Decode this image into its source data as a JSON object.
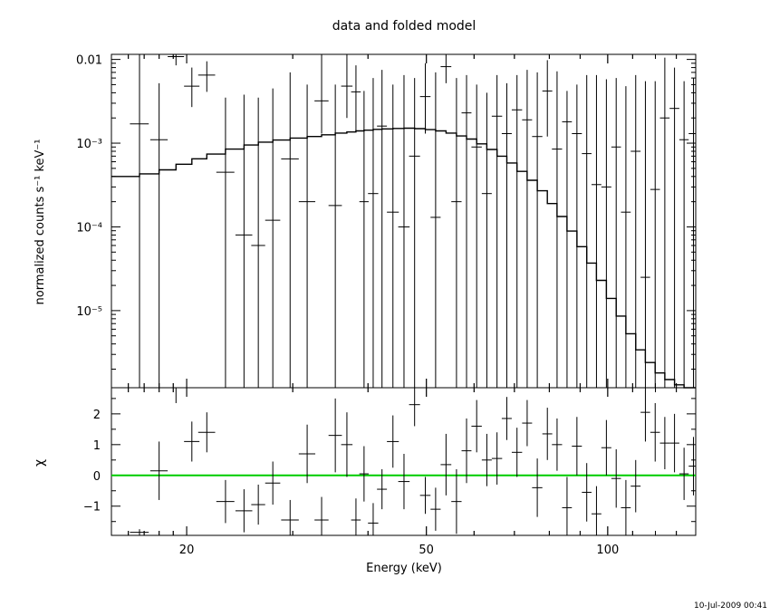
{
  "chart_data": [
    {
      "type": "scatter",
      "panel": "top",
      "title": "data and folded model",
      "xlabel": "",
      "ylabel": "normalized counts s⁻¹ keV⁻¹",
      "xscale": "log",
      "yscale": "log",
      "xlim": [
        15,
        140
      ],
      "ylim": [
        1.2e-06,
        0.0115
      ],
      "grid": false,
      "ytick_labels": [
        {
          "value": 0.01,
          "label": "0.01"
        },
        {
          "value": 0.001,
          "label": "10⁻³"
        },
        {
          "value": 0.0001,
          "label": "10⁻⁴"
        },
        {
          "value": 1e-05,
          "label": "10⁻⁵"
        }
      ],
      "data": {
        "x": [
          16.7,
          18.0,
          19.2,
          20.4,
          21.6,
          23.2,
          24.9,
          26.3,
          27.8,
          29.7,
          31.7,
          33.5,
          35.3,
          36.9,
          38.2,
          39.4,
          40.8,
          42.2,
          44.0,
          45.9,
          47.8,
          49.8,
          51.8,
          53.9,
          56.1,
          58.3,
          60.6,
          63.0,
          65.5,
          68.0,
          70.7,
          73.5,
          76.4,
          79.4,
          82.4,
          85.6,
          88.9,
          92.3,
          95.8,
          99.5,
          103.3,
          107.2,
          111.3,
          115.5,
          119.9,
          124.4,
          129.1,
          133.9,
          138.8
        ],
        "y": [
          0.0017,
          0.0011,
          0.0108,
          0.0048,
          0.0065,
          0.00045,
          8e-05,
          6e-05,
          0.00012,
          0.00065,
          0.0002,
          0.0032,
          0.00018,
          0.0048,
          0.0041,
          0.0002,
          0.00025,
          0.0016,
          0.00015,
          0.0001,
          0.0007,
          0.0036,
          0.00013,
          0.0082,
          0.0002,
          0.0023,
          0.0009,
          0.00025,
          0.0021,
          0.0013,
          0.0025,
          0.0019,
          0.0012,
          0.0042,
          0.00085,
          0.0018,
          0.0013,
          0.00075,
          0.00032,
          0.0003,
          0.0009,
          0.00015,
          0.0008,
          2.5e-05,
          0.00028,
          0.002,
          0.0026,
          0.0011,
          0.0013
        ],
        "xerr": [
          0.6,
          0.6,
          0.6,
          0.6,
          0.7,
          0.8,
          0.8,
          0.7,
          0.8,
          1.0,
          1.0,
          0.9,
          0.9,
          0.8,
          0.7,
          0.7,
          0.8,
          0.8,
          1.0,
          1.0,
          1.0,
          1.0,
          1.0,
          1.1,
          1.1,
          1.1,
          1.2,
          1.2,
          1.3,
          1.3,
          1.4,
          1.4,
          1.5,
          1.5,
          1.6,
          1.6,
          1.7,
          1.7,
          1.8,
          1.9,
          1.9,
          2.0,
          2.1,
          2.1,
          2.2,
          2.3,
          2.4,
          2.4,
          2.5
        ],
        "ylo": [
          1.2e-06,
          1.2e-06,
          0.0085,
          0.0027,
          0.0041,
          1.2e-06,
          1.2e-06,
          1.2e-06,
          1.2e-06,
          1.2e-06,
          1.2e-06,
          0.0013,
          1.2e-06,
          0.002,
          0.0014,
          1.2e-06,
          1.2e-06,
          1.2e-06,
          1.2e-06,
          1.2e-06,
          1.2e-06,
          0.0013,
          1.2e-06,
          0.0052,
          1.2e-06,
          1.2e-06,
          1.2e-06,
          1.2e-06,
          1.2e-06,
          1.2e-06,
          1.2e-06,
          1.2e-06,
          1.2e-06,
          0.0012,
          1.2e-06,
          1.2e-06,
          1.2e-06,
          1.2e-06,
          1.2e-06,
          1.2e-06,
          1.2e-06,
          1.2e-06,
          1.2e-06,
          1.2e-06,
          1.2e-06,
          1.2e-06,
          1.2e-06,
          1.2e-06,
          1.2e-06
        ],
        "yhi": [
          0.0115,
          0.0052,
          0.0115,
          0.008,
          0.0095,
          0.0035,
          0.0038,
          0.0035,
          0.0045,
          0.007,
          0.005,
          0.0115,
          0.005,
          0.0115,
          0.0085,
          0.0042,
          0.006,
          0.0075,
          0.005,
          0.0065,
          0.006,
          0.009,
          0.007,
          0.0115,
          0.006,
          0.0065,
          0.005,
          0.004,
          0.0065,
          0.0052,
          0.0065,
          0.0075,
          0.007,
          0.0098,
          0.0072,
          0.0042,
          0.005,
          0.0065,
          0.0065,
          0.0058,
          0.006,
          0.0048,
          0.0065,
          0.0055,
          0.0055,
          0.0105,
          0.008,
          0.0055,
          0.006
        ]
      },
      "model_step": {
        "x": [
          15,
          16.7,
          18.0,
          19.2,
          20.4,
          21.6,
          23.2,
          24.9,
          26.3,
          27.8,
          29.7,
          31.7,
          33.5,
          35.3,
          36.9,
          38.2,
          39.4,
          40.8,
          42.2,
          44.0,
          45.9,
          47.8,
          49.8,
          51.8,
          53.9,
          56.1,
          58.3,
          60.6,
          63.0,
          65.5,
          68.0,
          70.7,
          73.5,
          76.4,
          79.4,
          82.4,
          85.6,
          88.9,
          92.3,
          95.8,
          99.5,
          103.3,
          107.2,
          111.3,
          115.5,
          119.9,
          124.4,
          129.1,
          133.9,
          138.8,
          140
        ],
        "y": [
          0.0004,
          0.00043,
          0.00048,
          0.00056,
          0.00065,
          0.00074,
          0.00085,
          0.00095,
          0.00103,
          0.00109,
          0.00115,
          0.0012,
          0.00126,
          0.00132,
          0.00136,
          0.0014,
          0.00143,
          0.00146,
          0.00148,
          0.0015,
          0.00151,
          0.00149,
          0.00145,
          0.0014,
          0.00132,
          0.00122,
          0.00112,
          0.00098,
          0.00084,
          0.0007,
          0.00058,
          0.00046,
          0.00036,
          0.00027,
          0.00019,
          0.000133,
          8.9e-05,
          5.8e-05,
          3.7e-05,
          2.3e-05,
          1.4e-05,
          8.6e-06,
          5.3e-06,
          3.4e-06,
          2.4e-06,
          1.8e-06,
          1.5e-06,
          1.3e-06,
          1.2e-06,
          1.2e-06,
          1.2e-06
        ]
      }
    },
    {
      "type": "scatter",
      "panel": "bottom",
      "xlabel": "Energy (keV)",
      "ylabel": "χ",
      "xscale": "log",
      "xlim": [
        15,
        140
      ],
      "ylim": [
        -1.95,
        2.85
      ],
      "grid": false,
      "xticks": [
        20,
        50,
        100
      ],
      "xtick_labels": [
        "20",
        "50",
        "100"
      ],
      "yticks": [
        -1,
        0,
        1,
        2
      ],
      "ytick_labels": [
        "−1",
        "0",
        "1",
        "2"
      ],
      "reference_line": {
        "y": 0,
        "color": "#00cc00"
      },
      "data": {
        "x": [
          16.7,
          18.0,
          19.2,
          20.4,
          21.6,
          23.2,
          24.9,
          26.3,
          27.8,
          29.7,
          31.7,
          33.5,
          35.3,
          36.9,
          38.2,
          39.4,
          40.8,
          42.2,
          44.0,
          45.9,
          47.8,
          49.8,
          51.8,
          53.9,
          56.1,
          58.3,
          60.6,
          63.0,
          65.5,
          68.0,
          70.7,
          73.5,
          76.4,
          79.4,
          82.4,
          85.6,
          88.9,
          92.3,
          95.8,
          99.5,
          103.3,
          107.2,
          111.3,
          115.5,
          119.9,
          124.4,
          129.1,
          133.9,
          138.8
        ],
        "y": [
          -1.85,
          0.15,
          2.85,
          1.1,
          1.4,
          -0.85,
          -1.15,
          -0.95,
          -0.25,
          -1.45,
          0.7,
          -1.45,
          1.3,
          1.0,
          -1.45,
          0.05,
          -1.55,
          -0.45,
          1.1,
          -0.2,
          2.3,
          -0.65,
          -1.1,
          0.35,
          -0.85,
          0.8,
          1.6,
          0.5,
          0.55,
          1.85,
          0.75,
          1.7,
          -0.4,
          1.35,
          1.0,
          -1.05,
          0.95,
          -0.55,
          -1.25,
          0.9,
          -0.1,
          -1.05,
          -0.35,
          2.05,
          1.4,
          1.05,
          1.05,
          0.05,
          0.3
        ],
        "xerr": [
          0.6,
          0.6,
          0.6,
          0.6,
          0.7,
          0.8,
          0.8,
          0.7,
          0.8,
          1.0,
          1.0,
          0.9,
          0.9,
          0.8,
          0.7,
          0.7,
          0.8,
          0.8,
          1.0,
          1.0,
          1.0,
          1.0,
          1.0,
          1.1,
          1.1,
          1.1,
          1.2,
          1.2,
          1.3,
          1.3,
          1.4,
          1.4,
          1.5,
          1.5,
          1.6,
          1.6,
          1.7,
          1.7,
          1.8,
          1.9,
          1.9,
          2.0,
          2.1,
          2.1,
          2.2,
          2.3,
          2.4,
          2.4,
          2.5
        ],
        "yerr": [
          0.1,
          0.95,
          0.5,
          0.65,
          0.65,
          0.7,
          0.7,
          0.65,
          0.7,
          0.65,
          0.95,
          0.75,
          1.2,
          1.05,
          0.7,
          0.9,
          0.65,
          0.65,
          0.85,
          0.9,
          0.7,
          0.6,
          0.7,
          1.0,
          1.05,
          1.05,
          0.85,
          0.85,
          0.85,
          0.7,
          0.8,
          0.75,
          0.95,
          0.85,
          0.85,
          1.0,
          0.95,
          0.95,
          0.9,
          0.9,
          0.95,
          0.9,
          0.85,
          0.95,
          0.95,
          0.85,
          0.95,
          0.85,
          0.95
        ]
      }
    }
  ],
  "timestamp": "10-Jul-2009 00:41"
}
